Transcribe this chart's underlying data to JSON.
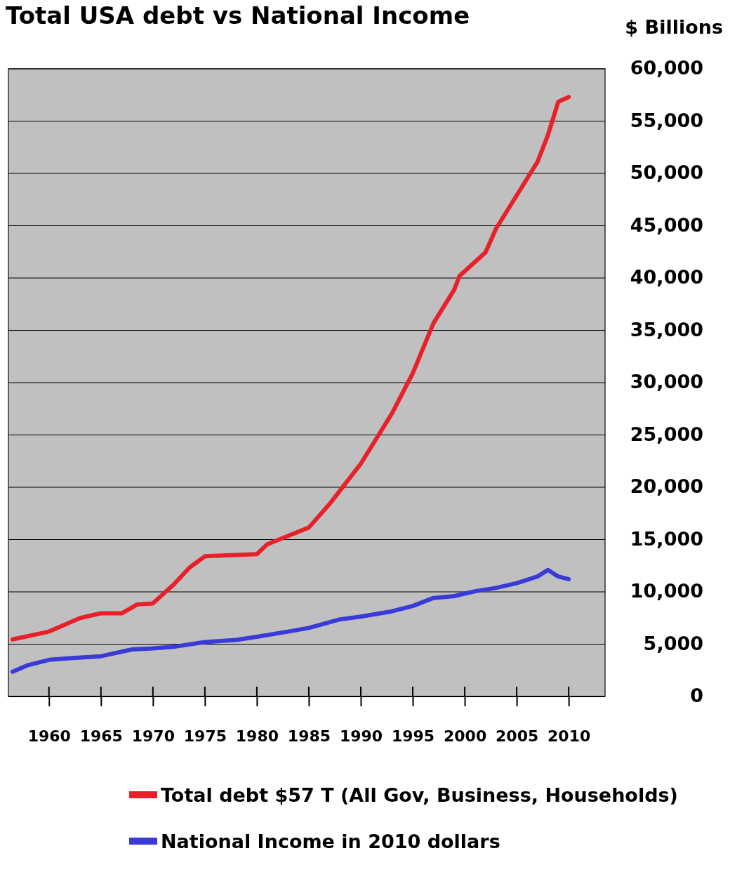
{
  "chart_data": {
    "type": "line",
    "title": "Total USA debt vs National Income",
    "ylabel": "$ Billions",
    "xlim": [
      1956.1,
      2013.5
    ],
    "xticks": [
      1960,
      1965,
      1970,
      1975,
      1980,
      1985,
      1990,
      1995,
      2000,
      2005,
      2010
    ],
    "ylim": [
      0,
      60000
    ],
    "yticks": [
      0,
      {
        "value": 5000,
        "label": "5,000"
      },
      {
        "value": 10000,
        "label": "10,000"
      },
      {
        "value": 15000,
        "label": "15,000"
      },
      {
        "value": 20000,
        "label": "20,000"
      },
      {
        "value": 25000,
        "label": "25,000"
      },
      {
        "value": 30000,
        "label": "30,000"
      },
      {
        "value": 35000,
        "label": "35,000"
      },
      {
        "value": 40000,
        "label": "40,000"
      },
      {
        "value": 45000,
        "label": "45,000"
      },
      {
        "value": 50000,
        "label": "50,000"
      },
      {
        "value": 55000,
        "label": "55,000"
      },
      {
        "value": 60000,
        "label": "60,000"
      }
    ],
    "grid": "y",
    "legend": "bottom",
    "marker": "none",
    "line_style": "solid",
    "series": [
      {
        "name": "Total debt $57 T  (All Gov, Business, Households)",
        "color": "#e8202a",
        "x": [
          1956.5,
          1960,
          1963,
          1965,
          1967,
          1968.5,
          1970,
          1972,
          1973.5,
          1975,
          1980,
          1981,
          1985,
          1987,
          1990,
          1993,
          1995,
          1997,
          1999,
          1999.5,
          2002,
          2003,
          2005,
          2007,
          2008,
          2009,
          2010
        ],
        "values": [
          5450,
          6200,
          7500,
          7950,
          7950,
          8800,
          8900,
          10700,
          12300,
          13400,
          13600,
          14550,
          16150,
          18400,
          22250,
          27050,
          30900,
          35700,
          38900,
          40200,
          42450,
          44700,
          47900,
          51100,
          53650,
          56850,
          57300
        ]
      },
      {
        "name": "National Income in 2010 dollars",
        "color": "#3a3ad8",
        "x": [
          1956.5,
          1958,
          1960,
          1962,
          1965,
          1968,
          1970,
          1972,
          1975,
          1978,
          1980,
          1983,
          1985,
          1988,
          1990,
          1993,
          1995,
          1997,
          1999,
          2001,
          2003,
          2005,
          2007,
          2008,
          2009,
          2010
        ],
        "values": [
          2370,
          3000,
          3500,
          3650,
          3850,
          4500,
          4600,
          4750,
          5200,
          5400,
          5700,
          6200,
          6550,
          7370,
          7630,
          8140,
          8650,
          9420,
          9600,
          10060,
          10380,
          10830,
          11470,
          12100,
          11470,
          11220
        ]
      }
    ]
  }
}
